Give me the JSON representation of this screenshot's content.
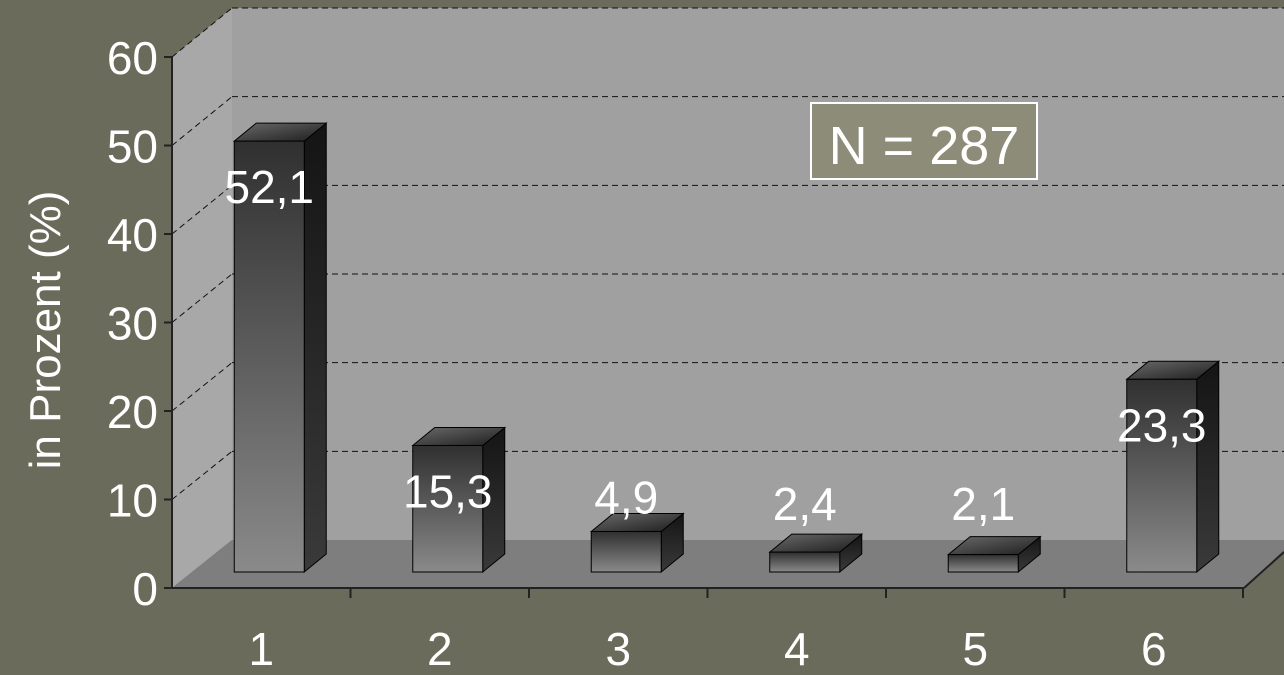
{
  "colors": {
    "page_background": "#6b6b5b",
    "back_wall": "#a0a0a0",
    "side_wall": "#a8a8a8",
    "floor": "#7e7e7e",
    "text": "#ffffff",
    "gridline": "#111111",
    "annotation_fill": "#8c8c78",
    "annotation_border": "#ffffff"
  },
  "chart_data": {
    "type": "bar",
    "style": "3d-column",
    "title": "",
    "xlabel": "",
    "ylabel": "in Prozent (%)",
    "categories": [
      "1",
      "2",
      "3",
      "4",
      "5",
      "6"
    ],
    "values": [
      52.1,
      15.3,
      4.9,
      2.4,
      2.1,
      23.3
    ],
    "data_labels": [
      "52,1",
      "15,3",
      "4,9",
      "2,4",
      "2,1",
      "23,3"
    ],
    "ylim": [
      0,
      60
    ],
    "yticks": [
      0,
      10,
      20,
      30,
      40,
      50,
      60
    ],
    "grid": true,
    "grid_style": "dashed",
    "legend": "none",
    "annotation": "N = 287"
  }
}
